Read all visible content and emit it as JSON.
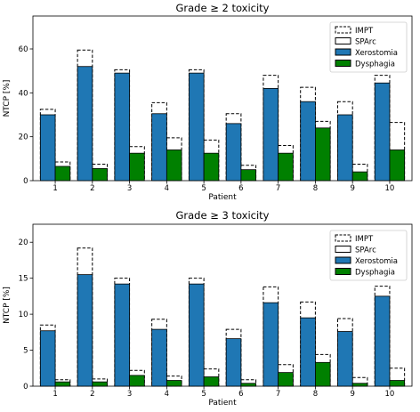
{
  "chart_data": [
    {
      "type": "bar",
      "title": "Grade ≥ 2 toxicity",
      "xlabel": "Patient",
      "ylabel": "NTCP [%]",
      "ylim": [
        0,
        75
      ],
      "yticks": [
        0,
        20,
        40,
        60
      ],
      "categories": [
        "1",
        "2",
        "3",
        "4",
        "5",
        "6",
        "7",
        "8",
        "9",
        "10"
      ],
      "legend_placement": "top-right",
      "legend": [
        "IMPT",
        "SPArc",
        "Xerostomia",
        "Dysphagia"
      ],
      "series": [
        {
          "name": "IMPT",
          "group": "Xerostomia",
          "values": [
            32.5,
            59.5,
            50.5,
            35.5,
            50.5,
            30.5,
            48,
            42.5,
            36,
            48
          ]
        },
        {
          "name": "IMPT",
          "group": "Dysphagia",
          "values": [
            8.5,
            7.5,
            15.5,
            19.5,
            18.5,
            7,
            16,
            27,
            7.5,
            26.5
          ]
        },
        {
          "name": "Xerostomia",
          "values": [
            30,
            52,
            49,
            30.5,
            49,
            26,
            42,
            36,
            30,
            44.5
          ]
        },
        {
          "name": "Dysphagia",
          "values": [
            6.5,
            5.5,
            12.5,
            14,
            12.5,
            5,
            12.5,
            24,
            4,
            14
          ]
        }
      ],
      "colors": {
        "Xerostomia": "#1f77b4",
        "Dysphagia": "#008000",
        "IMPT": "#ffffff",
        "SPArc": "#ffffff"
      }
    },
    {
      "type": "bar",
      "title": "Grade ≥ 3 toxicity",
      "xlabel": "Patient",
      "ylabel": "NTCP [%]",
      "ylim": [
        0,
        22.5
      ],
      "yticks": [
        0,
        5,
        10,
        15,
        20
      ],
      "categories": [
        "1",
        "2",
        "3",
        "4",
        "5",
        "6",
        "7",
        "8",
        "9",
        "10"
      ],
      "legend_placement": "top-right",
      "legend": [
        "IMPT",
        "SPArc",
        "Xerostomia",
        "Dysphagia"
      ],
      "series": [
        {
          "name": "IMPT",
          "group": "Xerostomia",
          "values": [
            8.5,
            19.2,
            15,
            9.3,
            15,
            7.9,
            13.8,
            11.7,
            9.4,
            13.9
          ]
        },
        {
          "name": "IMPT",
          "group": "Dysphagia",
          "values": [
            0.9,
            1,
            2.2,
            1.4,
            2.4,
            0.9,
            3,
            4.4,
            1.2,
            2.5
          ]
        },
        {
          "name": "Xerostomia",
          "values": [
            7.7,
            15.5,
            14.2,
            7.9,
            14.2,
            6.6,
            11.6,
            9.5,
            7.6,
            12.5
          ]
        },
        {
          "name": "Dysphagia",
          "values": [
            0.6,
            0.6,
            1.5,
            0.8,
            1.3,
            0.4,
            1.9,
            3.3,
            0.4,
            0.8
          ]
        }
      ],
      "colors": {
        "Xerostomia": "#1f77b4",
        "Dysphagia": "#008000",
        "IMPT": "#ffffff",
        "SPArc": "#ffffff"
      }
    }
  ]
}
